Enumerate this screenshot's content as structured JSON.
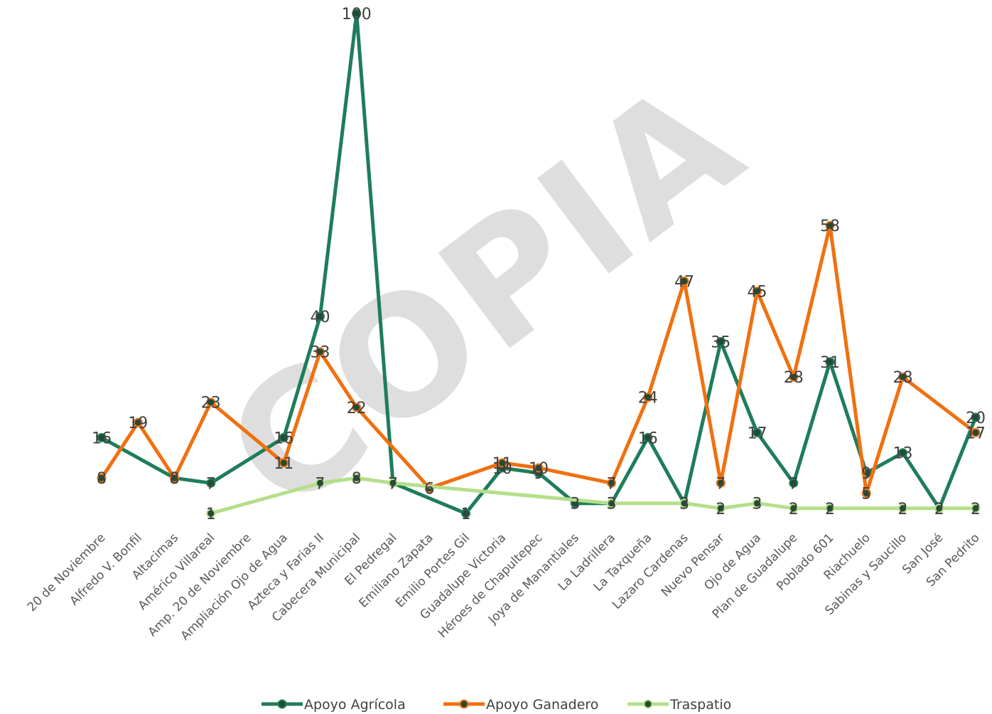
{
  "watermark": "COPIA",
  "chart_data": {
    "type": "line",
    "title": "",
    "xlabel": "",
    "ylabel": "",
    "ylim": [
      0,
      100
    ],
    "grid": false,
    "legend_position": "bottom",
    "categories": [
      "20 de Noviembre",
      "Alfredo V. Bonfil",
      "Altacimas",
      "Américo Villareal",
      "Amp. 20 de Noviembre",
      "Ampliación Ojo de Agua",
      "Azteca y Farias II",
      "Cabecera Municipal",
      "El Pedregal",
      "Emiliano Zapata",
      "Emilio Portes Gil",
      "Guadalupe Victoria",
      "Héroes de Chapultepec",
      "Joya de Manantiales",
      "La Ladrillera",
      "La Taxqueña",
      "Lazaro Cardenas",
      "Nuevo Pensar",
      "Ojo de Agua",
      "Plan de Guadalupe",
      "Poblado 601",
      "Riachuelo",
      "Sabinas y Saucillo",
      "San José",
      "San Pedrito"
    ],
    "series": [
      {
        "name": "Apoyo Agrícola",
        "color": "#1e7d5a",
        "values": [
          16,
          null,
          8,
          7,
          null,
          16,
          40,
          100,
          7,
          null,
          1,
          10,
          9,
          3,
          3,
          16,
          3,
          35,
          17,
          7,
          31,
          9,
          13,
          2,
          20
        ]
      },
      {
        "name": "Apoyo Ganadero",
        "color": "#f07010",
        "values": [
          8,
          19,
          8,
          23,
          null,
          11,
          33,
          22,
          null,
          6,
          null,
          11,
          10,
          null,
          7,
          24,
          47,
          7,
          45,
          28,
          58,
          5,
          28,
          null,
          17
        ]
      },
      {
        "name": "Traspatio",
        "color": "#b4df8a",
        "values": [
          null,
          null,
          null,
          1,
          null,
          null,
          7,
          8,
          7,
          null,
          null,
          null,
          null,
          null,
          3,
          null,
          3,
          2,
          3,
          2,
          2,
          null,
          2,
          2,
          2
        ]
      }
    ]
  }
}
